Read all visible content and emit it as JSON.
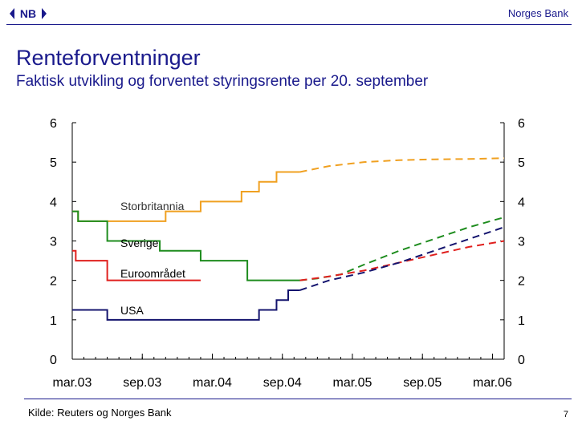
{
  "header": {
    "logo_text": "NB",
    "brand": "Norges Bank"
  },
  "title": "Renteforventninger",
  "subtitle": "Faktisk utvikling og forventet styringsrente per 20. september",
  "source": "Kilde: Reuters og Norges Bank",
  "page_number": "7",
  "colors": {
    "brand_blue": "#1a1a8c",
    "Storbritannia": "#f0a020",
    "Sverige": "#1e8c1e",
    "Euroområdet": "#e0201e",
    "USA": "#14146e"
  },
  "chart_data": {
    "type": "line",
    "x_unit": "months since mar.03 (0 = mar.03)",
    "xlim": [
      0,
      37
    ],
    "ylim": [
      0,
      6
    ],
    "y_ticks": [
      0,
      1,
      2,
      3,
      4,
      5,
      6
    ],
    "y_tick_labels": [
      "0",
      "1",
      "2",
      "3",
      "4",
      "5",
      "6"
    ],
    "x_ticks": [
      0,
      6,
      12,
      18,
      24,
      30,
      36
    ],
    "x_tick_labels": [
      "mar.03",
      "sep.03",
      "mar.04",
      "sep.04",
      "mar.05",
      "sep.05",
      "mar.06"
    ],
    "grid": false,
    "right_axis": true,
    "series": [
      {
        "name": "Storbritannia",
        "label": "Storbritannia",
        "actual": [
          [
            0,
            3.75
          ],
          [
            0.5,
            3.75
          ],
          [
            0.5,
            3.5
          ],
          [
            5,
            3.5
          ],
          [
            5,
            3.5
          ],
          [
            8,
            3.5
          ],
          [
            8,
            3.75
          ],
          [
            11,
            3.75
          ],
          [
            11,
            4.0
          ],
          [
            14.5,
            4.0
          ],
          [
            14.5,
            4.25
          ],
          [
            16,
            4.25
          ],
          [
            16,
            4.5
          ],
          [
            17.5,
            4.5
          ],
          [
            17.5,
            4.75
          ],
          [
            19.5,
            4.75
          ]
        ],
        "forecast": [
          [
            19.5,
            4.75
          ],
          [
            22,
            4.9
          ],
          [
            25,
            5.0
          ],
          [
            28,
            5.05
          ],
          [
            31,
            5.07
          ],
          [
            34,
            5.08
          ],
          [
            37,
            5.1
          ]
        ]
      },
      {
        "name": "Sverige",
        "label": "Sverige",
        "actual": [
          [
            0,
            3.75
          ],
          [
            0.5,
            3.75
          ],
          [
            0.5,
            3.5
          ],
          [
            3,
            3.5
          ],
          [
            3,
            3.0
          ],
          [
            7.5,
            3.0
          ],
          [
            7.5,
            2.75
          ],
          [
            11,
            2.75
          ],
          [
            11,
            2.5
          ],
          [
            15,
            2.5
          ],
          [
            15,
            2.0
          ],
          [
            19.5,
            2.0
          ]
        ],
        "forecast": [
          [
            19.5,
            2.0
          ],
          [
            21,
            2.05
          ],
          [
            23,
            2.15
          ],
          [
            25,
            2.4
          ],
          [
            28,
            2.75
          ],
          [
            31,
            3.05
          ],
          [
            34,
            3.35
          ],
          [
            37,
            3.6
          ]
        ]
      },
      {
        "name": "Euroområdet",
        "label": "Euroområdet",
        "actual": [
          [
            0,
            2.75
          ],
          [
            0.3,
            2.75
          ],
          [
            0.3,
            2.5
          ],
          [
            3,
            2.5
          ],
          [
            3,
            2.0
          ],
          [
            11,
            2.0
          ]
        ],
        "forecast": [
          [
            19.5,
            2.0
          ],
          [
            22,
            2.1
          ],
          [
            25,
            2.25
          ],
          [
            28,
            2.45
          ],
          [
            31,
            2.65
          ],
          [
            34,
            2.85
          ],
          [
            37,
            3.0
          ]
        ]
      },
      {
        "name": "USA",
        "label": "USA",
        "actual": [
          [
            0,
            1.25
          ],
          [
            3,
            1.25
          ],
          [
            3,
            1.0
          ],
          [
            16,
            1.0
          ],
          [
            16,
            1.25
          ],
          [
            17.5,
            1.25
          ],
          [
            17.5,
            1.5
          ],
          [
            18.5,
            1.5
          ],
          [
            18.5,
            1.75
          ],
          [
            19.5,
            1.75
          ]
        ],
        "forecast": [
          [
            19.5,
            1.75
          ],
          [
            22,
            2.0
          ],
          [
            25,
            2.2
          ],
          [
            28,
            2.45
          ],
          [
            31,
            2.75
          ],
          [
            34,
            3.05
          ],
          [
            37,
            3.35
          ]
        ]
      }
    ],
    "annotations": [
      "Storbritannia",
      "Sverige",
      "Euroområdet",
      "USA"
    ]
  }
}
